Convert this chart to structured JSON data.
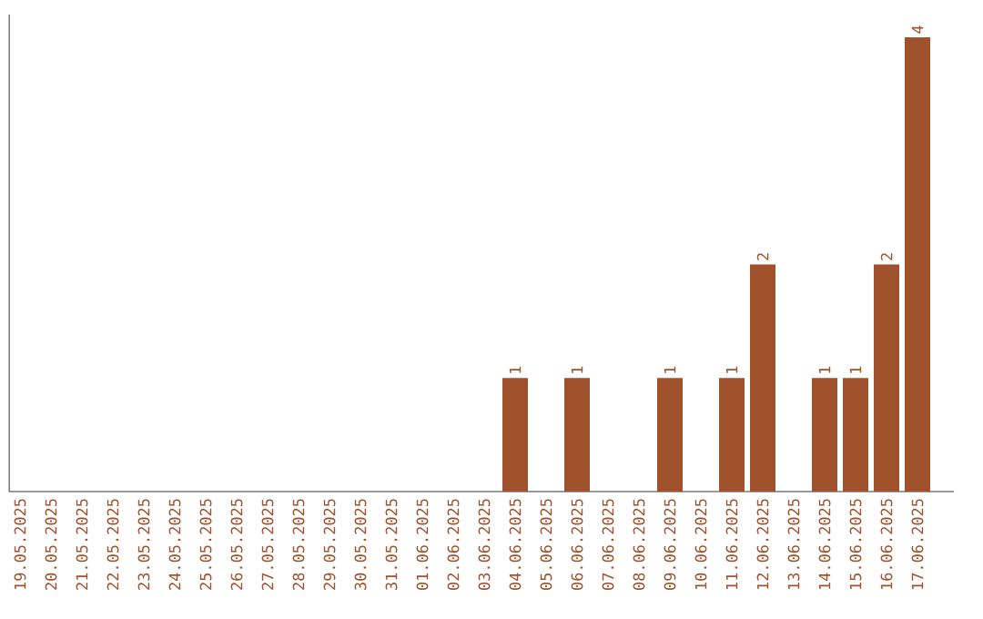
{
  "chart_data": {
    "type": "bar",
    "categories": [
      "19.05.2025",
      "20.05.2025",
      "21.05.2025",
      "22.05.2025",
      "23.05.2025",
      "24.05.2025",
      "25.05.2025",
      "26.05.2025",
      "27.05.2025",
      "28.05.2025",
      "29.05.2025",
      "30.05.2025",
      "31.05.2025",
      "01.06.2025",
      "02.06.2025",
      "03.06.2025",
      "04.06.2025",
      "05.06.2025",
      "06.06.2025",
      "07.06.2025",
      "08.06.2025",
      "09.06.2025",
      "10.06.2025",
      "11.06.2025",
      "12.06.2025",
      "13.06.2025",
      "14.06.2025",
      "15.06.2025",
      "16.06.2025",
      "17.06.2025"
    ],
    "values": [
      null,
      null,
      null,
      null,
      null,
      null,
      null,
      null,
      null,
      null,
      null,
      null,
      null,
      null,
      null,
      null,
      1,
      null,
      1,
      null,
      null,
      1,
      null,
      1,
      2,
      null,
      1,
      1,
      2,
      4
    ],
    "value_labels": [
      null,
      null,
      null,
      null,
      null,
      null,
      null,
      null,
      null,
      null,
      null,
      null,
      null,
      null,
      null,
      null,
      "1",
      null,
      "1",
      null,
      null,
      "1",
      null,
      "1",
      "2",
      null,
      "1",
      "1",
      "2",
      "4"
    ],
    "color": "#a0522d",
    "ylim": [
      0,
      4.2
    ],
    "tick_labels": "x"
  }
}
